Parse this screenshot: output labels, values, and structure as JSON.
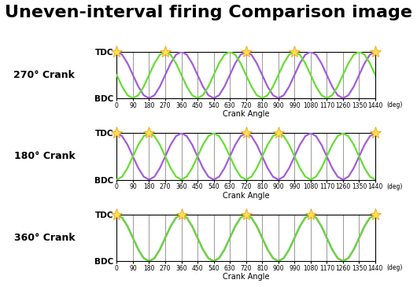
{
  "title": "Uneven-interval firing Comparison image",
  "chart_data": [
    {
      "type": "line",
      "title": "270° Crank",
      "x_label": "Crank Angle",
      "annotations": [
        {
          "text": "(deg)"
        }
      ],
      "x": [
        0,
        30,
        60,
        90,
        120,
        150,
        180,
        210,
        240,
        270,
        300,
        330,
        360,
        390,
        420,
        450,
        480,
        510,
        540,
        570,
        600,
        630,
        660,
        690,
        720,
        750,
        780,
        810,
        840,
        870,
        900,
        930,
        960,
        990,
        1020,
        1050,
        1080,
        1110,
        1140,
        1170,
        1200,
        1230,
        1260,
        1290,
        1320,
        1350,
        1380,
        1410,
        1440
      ],
      "xlim": [
        0,
        1440
      ],
      "xticks": [
        0,
        90,
        180,
        270,
        360,
        450,
        540,
        630,
        720,
        810,
        900,
        990,
        1080,
        1170,
        1260,
        1350,
        1440
      ],
      "ylim": [
        -1,
        1
      ],
      "yticks": [
        {
          "value": 1,
          "label": "TDC"
        },
        {
          "value": -1,
          "label": "BDC"
        }
      ],
      "grid": "x",
      "series": [
        {
          "color": "#a25cdc",
          "line_style": "solid",
          "values": [
            1,
            0.87,
            0.5,
            0,
            -0.5,
            -0.87,
            -1,
            -0.87,
            -0.5,
            0,
            0.5,
            0.87,
            1,
            0.87,
            0.5,
            0,
            -0.5,
            -0.87,
            -1,
            -0.87,
            -0.5,
            0,
            0.5,
            0.87,
            1,
            0.87,
            0.5,
            0,
            -0.5,
            -0.87,
            -1,
            -0.87,
            -0.5,
            0,
            0.5,
            0.87,
            1,
            0.87,
            0.5,
            0,
            -0.5,
            -0.87,
            -1,
            -0.87,
            -0.5,
            0,
            0.5,
            0.87,
            1
          ]
        },
        {
          "color": "#66dd33",
          "line_style": "solid",
          "values": [
            0,
            -0.5,
            -0.87,
            -1,
            -0.87,
            -0.5,
            0,
            0.5,
            0.87,
            1,
            0.87,
            0.5,
            0,
            -0.5,
            -0.87,
            -1,
            -0.87,
            -0.5,
            0,
            0.5,
            0.87,
            1,
            0.87,
            0.5,
            0,
            -0.5,
            -0.87,
            -1,
            -0.87,
            -0.5,
            0,
            0.5,
            0.87,
            1,
            0.87,
            0.5,
            0,
            -0.5,
            -0.87,
            -1,
            -0.87,
            -0.5,
            0,
            0.5,
            0.87,
            1,
            0.87,
            0.5,
            0
          ]
        },
        {
          "type": "scatter",
          "marker": "star",
          "color": "#ffe14d",
          "x": [
            0,
            270,
            720,
            990,
            1440
          ],
          "values": [
            1,
            1,
            1,
            1,
            1
          ]
        }
      ]
    },
    {
      "type": "line",
      "title": "180° Crank",
      "x_label": "Crank Angle",
      "annotations": [
        {
          "text": "(deg)"
        }
      ],
      "x": [
        0,
        30,
        60,
        90,
        120,
        150,
        180,
        210,
        240,
        270,
        300,
        330,
        360,
        390,
        420,
        450,
        480,
        510,
        540,
        570,
        600,
        630,
        660,
        690,
        720,
        750,
        780,
        810,
        840,
        870,
        900,
        930,
        960,
        990,
        1020,
        1050,
        1080,
        1110,
        1140,
        1170,
        1200,
        1230,
        1260,
        1290,
        1320,
        1350,
        1380,
        1410,
        1440
      ],
      "xlim": [
        0,
        1440
      ],
      "xticks": [
        0,
        90,
        180,
        270,
        360,
        450,
        540,
        630,
        720,
        810,
        900,
        990,
        1080,
        1170,
        1260,
        1350,
        1440
      ],
      "ylim": [
        -1,
        1
      ],
      "yticks": [
        {
          "value": 1,
          "label": "TDC"
        },
        {
          "value": -1,
          "label": "BDC"
        }
      ],
      "grid": "x",
      "series": [
        {
          "color": "#a25cdc",
          "line_style": "solid",
          "values": [
            1,
            0.87,
            0.5,
            0,
            -0.5,
            -0.87,
            -1,
            -0.87,
            -0.5,
            0,
            0.5,
            0.87,
            1,
            0.87,
            0.5,
            0,
            -0.5,
            -0.87,
            -1,
            -0.87,
            -0.5,
            0,
            0.5,
            0.87,
            1,
            0.87,
            0.5,
            0,
            -0.5,
            -0.87,
            -1,
            -0.87,
            -0.5,
            0,
            0.5,
            0.87,
            1,
            0.87,
            0.5,
            0,
            -0.5,
            -0.87,
            -1,
            -0.87,
            -0.5,
            0,
            0.5,
            0.87,
            1
          ]
        },
        {
          "color": "#66dd33",
          "line_style": "solid",
          "values": [
            -1,
            -0.87,
            -0.5,
            0,
            0.5,
            0.87,
            1,
            0.87,
            0.5,
            0,
            -0.5,
            -0.87,
            -1,
            -0.87,
            -0.5,
            0,
            0.5,
            0.87,
            1,
            0.87,
            0.5,
            0,
            -0.5,
            -0.87,
            -1,
            -0.87,
            -0.5,
            0,
            0.5,
            0.87,
            1,
            0.87,
            0.5,
            0,
            -0.5,
            -0.87,
            -1,
            -0.87,
            -0.5,
            0,
            0.5,
            0.87,
            1,
            0.87,
            0.5,
            0,
            -0.5,
            -0.87,
            -1
          ]
        },
        {
          "type": "scatter",
          "marker": "star",
          "color": "#ffe14d",
          "x": [
            0,
            180,
            720,
            900,
            1440
          ],
          "values": [
            1,
            1,
            1,
            1,
            1
          ]
        }
      ]
    },
    {
      "type": "line",
      "title": "360° Crank",
      "x_label": "Crank Angle",
      "annotations": [
        {
          "text": "(deg)"
        }
      ],
      "x": [
        0,
        30,
        60,
        90,
        120,
        150,
        180,
        210,
        240,
        270,
        300,
        330,
        360,
        390,
        420,
        450,
        480,
        510,
        540,
        570,
        600,
        630,
        660,
        690,
        720,
        750,
        780,
        810,
        840,
        870,
        900,
        930,
        960,
        990,
        1020,
        1050,
        1080,
        1110,
        1140,
        1170,
        1200,
        1230,
        1260,
        1290,
        1320,
        1350,
        1380,
        1410,
        1440
      ],
      "xlim": [
        0,
        1440
      ],
      "xticks": [
        0,
        90,
        180,
        270,
        360,
        450,
        540,
        630,
        720,
        810,
        900,
        990,
        1080,
        1170,
        1260,
        1350,
        1440
      ],
      "ylim": [
        -1,
        1
      ],
      "yticks": [
        {
          "value": 1,
          "label": "TDC"
        },
        {
          "value": -1,
          "label": "BDC"
        }
      ],
      "grid": "x",
      "series": [
        {
          "color": "#a25cdc",
          "line_style": "solid",
          "values": [
            1,
            0.87,
            0.5,
            0,
            -0.5,
            -0.87,
            -1,
            -0.87,
            -0.5,
            0,
            0.5,
            0.87,
            1,
            0.87,
            0.5,
            0,
            -0.5,
            -0.87,
            -1,
            -0.87,
            -0.5,
            0,
            0.5,
            0.87,
            1,
            0.87,
            0.5,
            0,
            -0.5,
            -0.87,
            -1,
            -0.87,
            -0.5,
            0,
            0.5,
            0.87,
            1,
            0.87,
            0.5,
            0,
            -0.5,
            -0.87,
            -1,
            -0.87,
            -0.5,
            0,
            0.5,
            0.87,
            1
          ]
        },
        {
          "color": "#66dd33",
          "line_style": "solid",
          "values": [
            1,
            0.87,
            0.5,
            0,
            -0.5,
            -0.87,
            -1,
            -0.87,
            -0.5,
            0,
            0.5,
            0.87,
            1,
            0.87,
            0.5,
            0,
            -0.5,
            -0.87,
            -1,
            -0.87,
            -0.5,
            0,
            0.5,
            0.87,
            1,
            0.87,
            0.5,
            0,
            -0.5,
            -0.87,
            -1,
            -0.87,
            -0.5,
            0,
            0.5,
            0.87,
            1,
            0.87,
            0.5,
            0,
            -0.5,
            -0.87,
            -1,
            -0.87,
            -0.5,
            0,
            0.5,
            0.87,
            1
          ]
        },
        {
          "type": "scatter",
          "marker": "star",
          "color": "#ffe14d",
          "x": [
            0,
            360,
            720,
            1080,
            1440
          ],
          "values": [
            1,
            1,
            1,
            1,
            1
          ]
        }
      ]
    }
  ]
}
